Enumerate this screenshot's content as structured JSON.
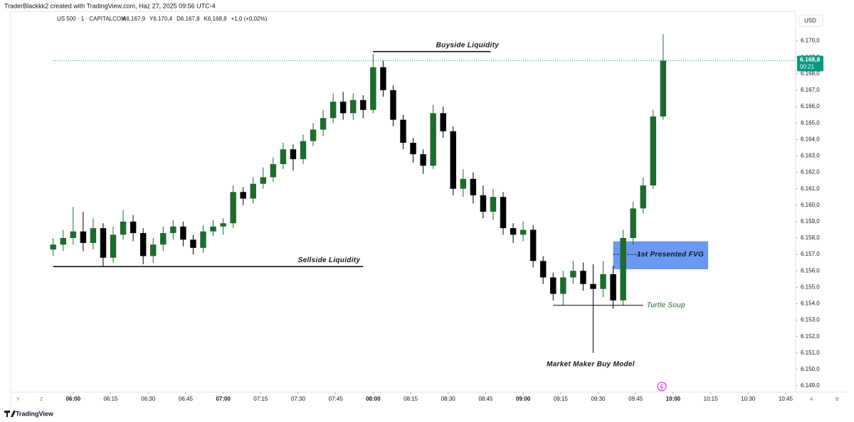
{
  "ui": {
    "credit": "TraderBlackkk2 created with TradingView.com, Haz 27, 2025 09:56 UTC-4",
    "symbol": "US 500 · 1 · CAPITALCOM",
    "ohlc": [
      "A6.167,9",
      "Y6.170,4",
      "D6.167,8",
      "K6.168,8",
      "+1,0 (+0,02%)"
    ],
    "currency": "USD",
    "left_buttons": [
      "Y",
      "Z"
    ],
    "right_buttons": [
      "A",
      "B"
    ],
    "logo": "TradingView"
  },
  "chart_data": {
    "type": "candlestick",
    "up_color": "#1e6b2e",
    "down_color": "#000000",
    "grid": false,
    "x": [
      "05:52",
      "05:56",
      "06:00",
      "06:04",
      "06:08",
      "06:12",
      "06:16",
      "06:20",
      "06:24",
      "06:28",
      "06:32",
      "06:36",
      "06:40",
      "06:44",
      "06:48",
      "06:52",
      "06:56",
      "07:00",
      "07:04",
      "07:08",
      "07:12",
      "07:16",
      "07:20",
      "07:24",
      "07:28",
      "07:32",
      "07:36",
      "07:40",
      "07:44",
      "07:48",
      "07:52",
      "07:56",
      "08:00",
      "08:04",
      "08:08",
      "08:12",
      "08:16",
      "08:20",
      "08:24",
      "08:28",
      "08:32",
      "08:36",
      "08:40",
      "08:44",
      "08:48",
      "08:52",
      "08:56",
      "09:00",
      "09:04",
      "09:08",
      "09:12",
      "09:16",
      "09:20",
      "09:24",
      "09:28",
      "09:32",
      "09:36",
      "09:40",
      "09:44",
      "09:48",
      "09:52",
      "09:56"
    ],
    "open": [
      6157.3,
      6157.6,
      6158.0,
      6158.4,
      6157.7,
      6158.6,
      6156.8,
      6158.2,
      6159.0,
      6158.3,
      6156.9,
      6157.6,
      6158.3,
      6158.7,
      6157.9,
      6157.4,
      6158.4,
      6158.7,
      6158.9,
      6160.8,
      6160.4,
      6161.3,
      6161.7,
      6162.5,
      6163.4,
      6162.8,
      6163.9,
      6164.6,
      6165.3,
      6166.3,
      6165.6,
      6166.4,
      6165.8,
      6168.4,
      6167.0,
      6165.2,
      6163.8,
      6163.1,
      6162.4,
      6165.6,
      6164.5,
      6161.0,
      6161.6,
      6160.6,
      6159.6,
      6160.5,
      6158.6,
      6158.2,
      6158.5,
      6156.6,
      6155.6,
      6154.6,
      6155.6,
      6156.0,
      6155.2,
      6154.9,
      6155.8,
      6154.2,
      6158.0,
      6159.8,
      6161.2,
      6165.4
    ],
    "high": [
      6158.0,
      6158.5,
      6159.9,
      6159.6,
      6159.2,
      6158.9,
      6158.7,
      6159.7,
      6159.4,
      6158.6,
      6158.0,
      6158.7,
      6159.1,
      6159.0,
      6158.2,
      6158.8,
      6159.1,
      6159.2,
      6161.2,
      6161.1,
      6161.7,
      6162.3,
      6162.9,
      6163.8,
      6163.7,
      6164.3,
      6165.0,
      6165.8,
      6166.8,
      6166.9,
      6166.8,
      6166.7,
      6169.2,
      6168.8,
      6167.3,
      6165.5,
      6164.1,
      6163.4,
      6166.1,
      6166.0,
      6164.8,
      6162.2,
      6162.0,
      6161.2,
      6161.0,
      6160.8,
      6158.9,
      6159.0,
      6158.8,
      6156.9,
      6155.9,
      6156.0,
      6156.6,
      6156.5,
      6156.4,
      6156.6,
      6156.3,
      6158.5,
      6160.2,
      6161.7,
      6165.8,
      6170.4
    ],
    "low": [
      6156.9,
      6157.2,
      6157.6,
      6157.2,
      6157.3,
      6156.3,
      6156.5,
      6157.9,
      6157.8,
      6156.4,
      6156.5,
      6157.2,
      6157.9,
      6157.5,
      6157.0,
      6157.1,
      6158.1,
      6158.2,
      6158.6,
      6160.0,
      6160.1,
      6161.0,
      6161.4,
      6162.2,
      6162.1,
      6162.5,
      6163.6,
      6164.2,
      6165.0,
      6165.2,
      6165.2,
      6165.3,
      6165.6,
      6166.6,
      6164.8,
      6163.4,
      6162.6,
      6161.9,
      6162.2,
      6164.1,
      6160.6,
      6160.5,
      6160.1,
      6159.2,
      6159.1,
      6158.2,
      6157.7,
      6157.8,
      6156.2,
      6155.2,
      6154.2,
      6153.9,
      6155.2,
      6154.8,
      6151.0,
      6154.4,
      6153.7,
      6153.9,
      6157.6,
      6159.5,
      6161.0,
      6165.2
    ],
    "close": [
      6157.6,
      6158.0,
      6158.4,
      6157.7,
      6158.6,
      6156.8,
      6158.2,
      6159.0,
      6158.3,
      6156.9,
      6157.6,
      6158.3,
      6158.7,
      6157.9,
      6157.4,
      6158.4,
      6158.7,
      6158.9,
      6160.8,
      6160.4,
      6161.3,
      6161.7,
      6162.5,
      6163.4,
      6162.8,
      6163.9,
      6164.6,
      6165.3,
      6166.3,
      6165.6,
      6166.4,
      6165.8,
      6168.4,
      6167.0,
      6165.2,
      6163.8,
      6163.1,
      6162.4,
      6165.6,
      6164.5,
      6161.0,
      6161.6,
      6160.6,
      6159.6,
      6160.5,
      6158.6,
      6158.2,
      6158.5,
      6156.6,
      6155.6,
      6154.6,
      6155.6,
      6156.0,
      6155.2,
      6154.9,
      6155.8,
      6154.2,
      6158.0,
      6159.8,
      6161.2,
      6165.4,
      6168.8
    ],
    "xlim": [
      "05:35",
      "10:49"
    ],
    "xticks": [
      "06:00",
      "06:15",
      "06:30",
      "06:45",
      "07:00",
      "07:15",
      "07:30",
      "07:45",
      "08:00",
      "08:15",
      "08:30",
      "08:45",
      "09:00",
      "09:15",
      "09:30",
      "09:45",
      "10:00",
      "10:15",
      "10:30",
      "10:45"
    ],
    "ylim": [
      6148.7,
      6171.8
    ],
    "yticks": [
      {
        "value": 6149,
        "label": "6.149,0"
      },
      {
        "value": 6150,
        "label": "6.150,0"
      },
      {
        "value": 6151,
        "label": "6.151,0"
      },
      {
        "value": 6152,
        "label": "6.152,0"
      },
      {
        "value": 6153,
        "label": "6.153,0"
      },
      {
        "value": 6154,
        "label": "6.154,0"
      },
      {
        "value": 6155,
        "label": "6.155,0"
      },
      {
        "value": 6156,
        "label": "6.156,0"
      },
      {
        "value": 6157,
        "label": "6.157,0"
      },
      {
        "value": 6158,
        "label": "6.158,0"
      },
      {
        "value": 6159,
        "label": "6.159,0"
      },
      {
        "value": 6160,
        "label": "6.160,0"
      },
      {
        "value": 6161,
        "label": "6.161,0"
      },
      {
        "value": 6162,
        "label": "6.162,0"
      },
      {
        "value": 6163,
        "label": "6.163,0"
      },
      {
        "value": 6164,
        "label": "6.164,0"
      },
      {
        "value": 6165,
        "label": "6.165,0"
      },
      {
        "value": 6166,
        "label": "6.166,0"
      },
      {
        "value": 6167,
        "label": "6.167,0"
      },
      {
        "value": 6168,
        "label": "6.168,0"
      },
      {
        "value": 6169,
        "label": "6.169,0"
      },
      {
        "value": 6170,
        "label": "6.170,0"
      }
    ],
    "last_price": {
      "value": 6168.8,
      "label": "6.168,8",
      "countdown": "00:21",
      "color": "#089981"
    },
    "levels": [
      {
        "text": "Buyside Liquidity",
        "value": 6169.35,
        "from": "08:00",
        "to": "08:47"
      },
      {
        "text": "Sellside Liquidity",
        "value": 6156.26,
        "from": "05:52",
        "to": "07:56"
      },
      {
        "text": "Turtle Soup",
        "value": 6153.9,
        "from": "09:12",
        "to": "09:48"
      }
    ],
    "fvg": {
      "text": "1st Presented FVG",
      "top": 6157.8,
      "bottom": 6156.1,
      "mid": 6157.0,
      "from": "09:36",
      "to": "10:14",
      "color": "#5b8def"
    },
    "model_label": {
      "text": "Market Maker Buy Model",
      "x": "09:27",
      "value": 6150.3
    }
  }
}
